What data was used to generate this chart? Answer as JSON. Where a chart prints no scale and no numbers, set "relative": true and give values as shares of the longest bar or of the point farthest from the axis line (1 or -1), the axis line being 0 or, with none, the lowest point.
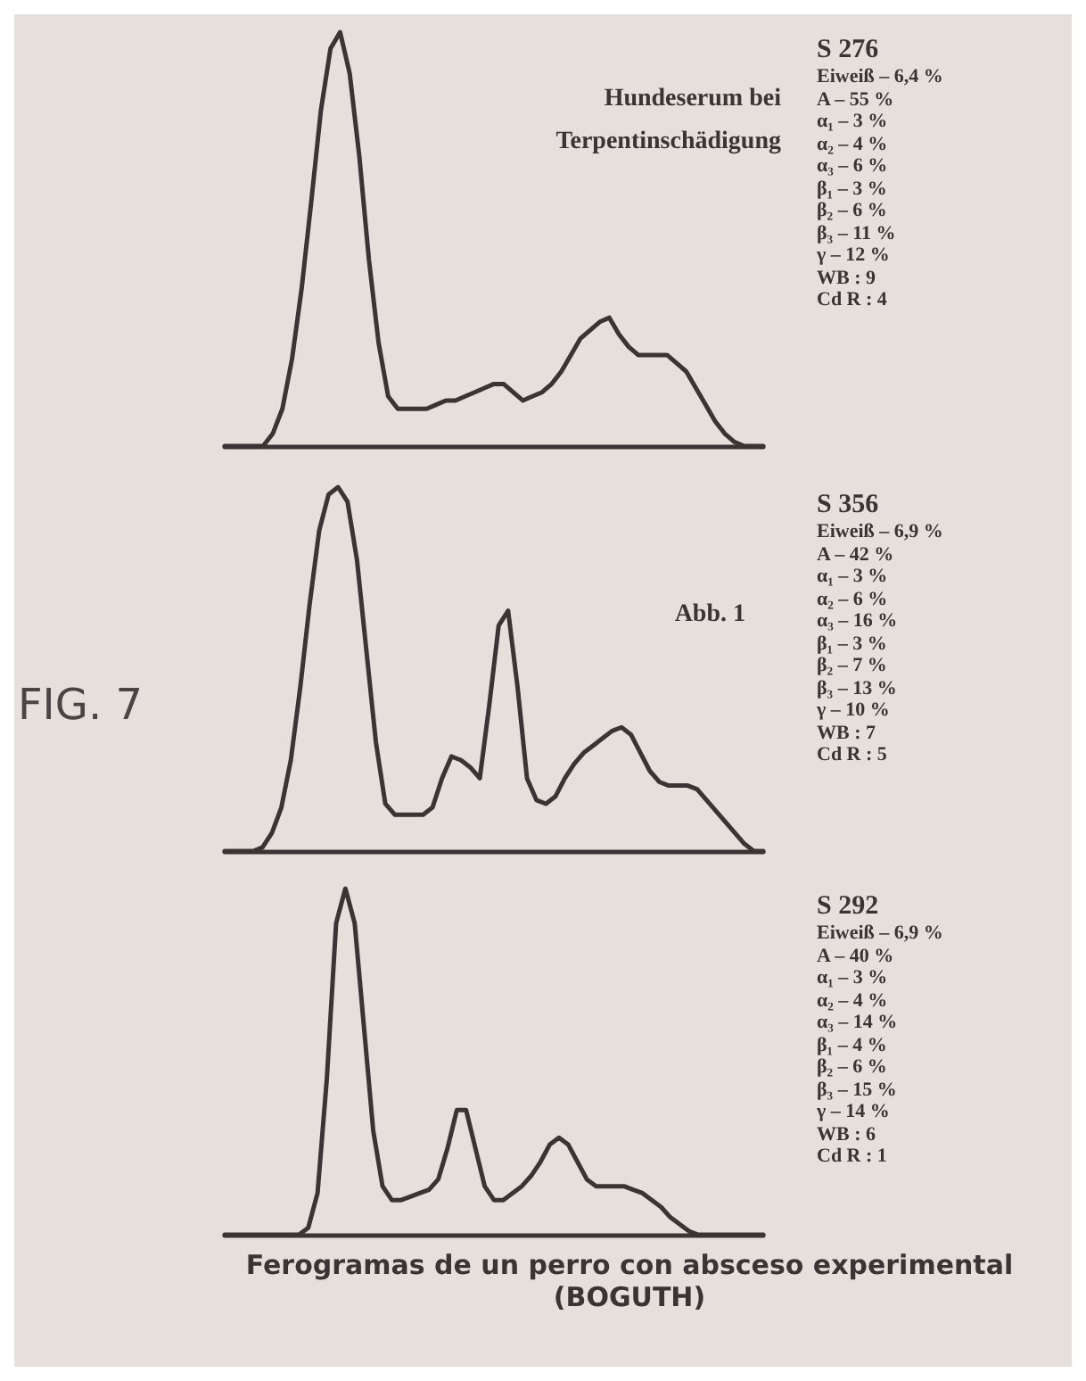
{
  "chart_data": [
    {
      "type": "line",
      "relative": true,
      "marker": "none",
      "subtitle": "Hundeserum bei Terpentinschädigung",
      "categories": [
        null,
        null,
        null,
        null,
        null,
        null,
        null,
        null,
        null,
        null,
        null,
        null,
        null,
        null,
        null,
        null,
        null,
        null,
        null,
        null,
        null,
        null,
        null,
        null,
        null,
        null,
        null,
        null,
        null,
        null,
        null,
        null,
        null,
        null,
        null,
        null,
        null,
        null,
        null,
        null,
        null,
        null,
        null,
        null,
        null,
        null,
        null,
        null,
        null,
        null,
        null,
        null,
        null,
        null,
        null,
        null,
        null
      ],
      "series": [
        {
          "color": "#3a3434",
          "values": [
            0,
            0,
            0,
            0,
            0,
            0.03,
            0.09,
            0.21,
            0.38,
            0.59,
            0.81,
            0.96,
            1,
            0.9,
            0.7,
            0.45,
            0.25,
            0.12,
            0.09,
            0.09,
            0.09,
            0.09,
            0.1,
            0.11,
            0.11,
            0.12,
            0.13,
            0.14,
            0.15,
            0.15,
            0.13,
            0.11,
            0.12,
            0.13,
            0.15,
            0.18,
            0.22,
            0.26,
            0.28,
            0.3,
            0.31,
            0.27,
            0.24,
            0.22,
            0.22,
            0.22,
            0.22,
            0.2,
            0.18,
            0.14,
            0.1,
            0.06,
            0.03,
            0.01,
            0,
            0,
            0
          ]
        }
      ],
      "annotations": [
        "S 276",
        "Eiweiß – 6,4 %",
        "A – 55 %",
        "α₁ – 3 %",
        "α₂ – 4 %",
        "α₃ – 6 %",
        "β₁ – 3 %",
        "β₂ – 6 %",
        "β₃ – 11 %",
        "γ – 12 %",
        "WB : 9",
        "Cd R : 4"
      ]
    },
    {
      "type": "line",
      "relative": true,
      "marker": "none",
      "subtitle": "Abb. 1",
      "ylabel": "FIG. 7",
      "categories": [
        null,
        null,
        null,
        null,
        null,
        null,
        null,
        null,
        null,
        null,
        null,
        null,
        null,
        null,
        null,
        null,
        null,
        null,
        null,
        null,
        null,
        null,
        null,
        null,
        null,
        null,
        null,
        null,
        null,
        null,
        null,
        null,
        null,
        null,
        null,
        null,
        null,
        null,
        null,
        null,
        null,
        null,
        null,
        null,
        null,
        null,
        null,
        null,
        null,
        null,
        null,
        null,
        null,
        null,
        null,
        null,
        null,
        null
      ],
      "series": [
        {
          "color": "#3a3434",
          "values": [
            0,
            0,
            0,
            0,
            0.01,
            0.05,
            0.12,
            0.25,
            0.45,
            0.68,
            0.88,
            0.98,
            1,
            0.96,
            0.8,
            0.55,
            0.3,
            0.13,
            0.1,
            0.1,
            0.1,
            0.1,
            0.12,
            0.2,
            0.26,
            0.25,
            0.23,
            0.2,
            0.4,
            0.62,
            0.66,
            0.45,
            0.2,
            0.14,
            0.13,
            0.15,
            0.2,
            0.24,
            0.27,
            0.29,
            0.31,
            0.33,
            0.34,
            0.32,
            0.27,
            0.22,
            0.19,
            0.18,
            0.18,
            0.18,
            0.17,
            0.14,
            0.11,
            0.08,
            0.05,
            0.02,
            0,
            0
          ]
        }
      ],
      "annotations": [
        "S 356",
        "Eiweiß – 6,9 %",
        "A – 42 %",
        "α₁ – 3 %",
        "α₂ – 6 %",
        "α₃ – 16 %",
        "β₁ – 3 %",
        "β₂ – 7 %",
        "β₃ – 13 %",
        "γ – 10 %",
        "WB : 7",
        "Cd R : 5"
      ]
    },
    {
      "type": "line",
      "relative": true,
      "marker": "none",
      "xlabel": "Ferogramas de un perro con absceso experimental (BOGUTH)",
      "categories": [
        null,
        null,
        null,
        null,
        null,
        null,
        null,
        null,
        null,
        null,
        null,
        null,
        null,
        null,
        null,
        null,
        null,
        null,
        null,
        null,
        null,
        null,
        null,
        null,
        null,
        null,
        null,
        null,
        null,
        null,
        null,
        null,
        null,
        null,
        null,
        null,
        null,
        null,
        null,
        null,
        null,
        null,
        null,
        null,
        null,
        null,
        null,
        null,
        null,
        null,
        null,
        null,
        null,
        null,
        null,
        null,
        null,
        null,
        null
      ],
      "series": [
        {
          "color": "#3a3434",
          "values": [
            0,
            0,
            0,
            0,
            0,
            0,
            0,
            0,
            0,
            0.02,
            0.12,
            0.45,
            0.9,
            1,
            0.9,
            0.6,
            0.3,
            0.14,
            0.1,
            0.1,
            0.11,
            0.12,
            0.13,
            0.16,
            0.25,
            0.36,
            0.36,
            0.25,
            0.14,
            0.1,
            0.1,
            0.12,
            0.14,
            0.17,
            0.21,
            0.26,
            0.28,
            0.26,
            0.21,
            0.16,
            0.14,
            0.14,
            0.14,
            0.14,
            0.13,
            0.12,
            0.1,
            0.08,
            0.05,
            0.03,
            0.01,
            0,
            0,
            0,
            0,
            0,
            0,
            0,
            0
          ]
        }
      ],
      "annotations": [
        "S 292",
        "Eiweiß – 6,9 %",
        "A – 40 %",
        "α₁ – 3 %",
        "α₂ – 4 %",
        "α₃ – 14 %",
        "β₁ – 4 %",
        "β₂ – 6 %",
        "β₃ – 15 %",
        "γ – 14 %",
        "WB : 6",
        "Cd R : 1"
      ]
    }
  ]
}
